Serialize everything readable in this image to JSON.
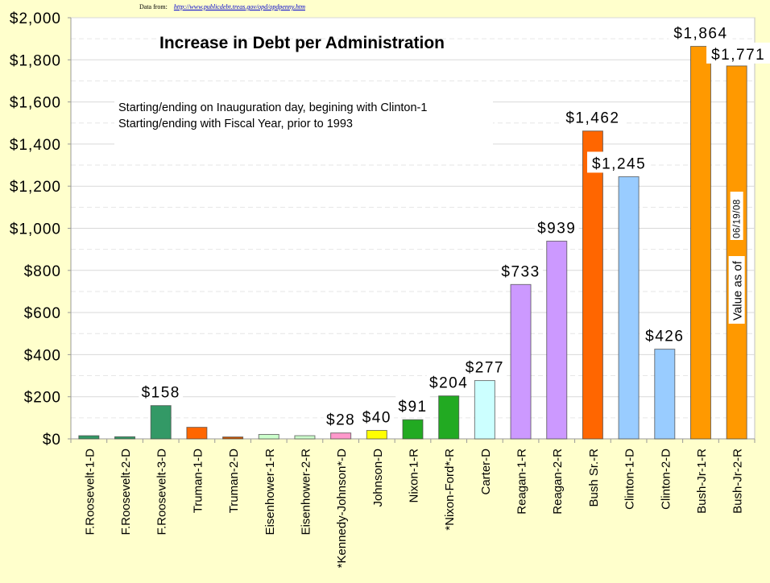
{
  "source": {
    "label": "Data from:",
    "link": "http://www.publicdebt.treas.gov/opd/opdpenny.htm"
  },
  "chart_data": {
    "type": "bar",
    "title": "Increase in Debt per Administration",
    "notes": [
      "Starting/ending on Inauguration day, begining with Clinton-1",
      "Starting/ending with Fiscal Year, prior to 1993"
    ],
    "annotation": {
      "text": "Value as of",
      "date": "06/19/08"
    },
    "xlabel": "",
    "ylabel": "",
    "ylim": [
      0,
      2000
    ],
    "yticks": [
      0,
      200,
      400,
      600,
      800,
      1000,
      1200,
      1400,
      1600,
      1800,
      2000
    ],
    "ytick_labels": [
      "$0",
      "$200",
      "$400",
      "$600",
      "$800",
      "$1,000",
      "$1,200",
      "$1,400",
      "$1,600",
      "$1,800",
      "$2,000"
    ],
    "grid": true,
    "categories": [
      "F.Roosevelt-1-D",
      "F.Roosevelt-2-D",
      "F.Roosevelt-3-D",
      "Truman-1-D",
      "Truman-2-D",
      "Eisenhower-1-R",
      "Eisenhower-2-R",
      "*Kennedy-Johnson*-D",
      "Johnson-D",
      "Nixon-1-R",
      "*Nixon-Ford*-R",
      "Carter-D",
      "Reagan-1-R",
      "Reagan-2-R",
      "Bush Sr.-R",
      "Clinton-1-D",
      "Clinton-2-D",
      "Bush-Jr-1-R",
      "Bush-Jr-2-R"
    ],
    "values": [
      15,
      10,
      158,
      55,
      9,
      21,
      15,
      28,
      40,
      91,
      204,
      277,
      733,
      939,
      1462,
      1245,
      426,
      1864,
      1771
    ],
    "data_labels": [
      null,
      null,
      "$158",
      null,
      null,
      null,
      null,
      "$28",
      "$40",
      "$91",
      "$204",
      "$277",
      "$733",
      "$939",
      "$1,462",
      "$1,245",
      "$426",
      "$1,864",
      "$1,771"
    ],
    "colors": [
      "#339966",
      "#339966",
      "#339966",
      "#ff6600",
      "#cc5500",
      "#ccffcc",
      "#ccffcc",
      "#ff99cc",
      "#ffff00",
      "#22aa22",
      "#22aa22",
      "#ccffff",
      "#cc99ff",
      "#cc99ff",
      "#ff6600",
      "#99ccff",
      "#99ccff",
      "#ff9900",
      "#ff9900"
    ]
  }
}
